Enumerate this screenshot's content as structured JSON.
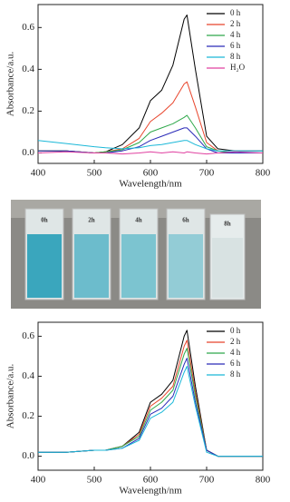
{
  "chart_data": [
    {
      "type": "line",
      "x_label": "Wavelength/nm",
      "y_label": "Absorbance/a.u.",
      "x": [
        400,
        450,
        500,
        520,
        550,
        580,
        600,
        620,
        640,
        660,
        665,
        680,
        700,
        720,
        750,
        800
      ],
      "xlim": [
        400,
        800
      ],
      "xticks": [
        400,
        500,
        600,
        700,
        800
      ],
      "ylim": [
        -0.05,
        0.71
      ],
      "yticks": [
        {
          "value": 0,
          "label": "0.0"
        },
        {
          "value": 0.2,
          "label": "0.2"
        },
        {
          "value": 0.4,
          "label": "0.4"
        },
        {
          "value": 0.6,
          "label": "0.6"
        }
      ],
      "legend": "upper right",
      "series": [
        {
          "name": "0 h",
          "color": "#000000",
          "values": [
            0.01,
            0.01,
            0.0,
            0.005,
            0.04,
            0.12,
            0.25,
            0.3,
            0.42,
            0.64,
            0.66,
            0.4,
            0.08,
            0.02,
            0.01,
            0.01
          ]
        },
        {
          "name": "2 h",
          "color": "#e8452c",
          "values": [
            0.01,
            0.01,
            0.0,
            0.005,
            0.02,
            0.07,
            0.15,
            0.19,
            0.24,
            0.33,
            0.34,
            0.22,
            0.05,
            0.01,
            0.0,
            0.0
          ]
        },
        {
          "name": "4 h",
          "color": "#2ea84a",
          "values": [
            0.01,
            0.01,
            0.0,
            0.005,
            0.015,
            0.05,
            0.1,
            0.12,
            0.14,
            0.17,
            0.18,
            0.12,
            0.03,
            0.01,
            0.0,
            0.0
          ]
        },
        {
          "name": "6 h",
          "color": "#2a2ab8",
          "values": [
            0.01,
            0.01,
            0.0,
            0.0,
            0.01,
            0.03,
            0.06,
            0.08,
            0.1,
            0.12,
            0.12,
            0.08,
            0.02,
            0.0,
            0.0,
            0.0
          ]
        },
        {
          "name": "8 h",
          "color": "#1bb8d8",
          "values": [
            0.06,
            0.045,
            0.03,
            0.025,
            0.02,
            0.025,
            0.035,
            0.04,
            0.05,
            0.06,
            0.06,
            0.04,
            0.02,
            0.01,
            0.01,
            0.01
          ]
        },
        {
          "name": "H₂O",
          "color": "#e040a0",
          "values": [
            0.0,
            0.005,
            0.0,
            0.0,
            -0.005,
            0.0,
            0.005,
            0.0,
            0.005,
            0.0,
            0.005,
            0.0,
            -0.005,
            0.0,
            0.005,
            0.0
          ]
        }
      ]
    },
    {
      "type": "line",
      "x_label": "Wavelength/nm",
      "y_label": "Absorbance/a.u.",
      "x": [
        400,
        450,
        500,
        520,
        550,
        580,
        600,
        620,
        640,
        660,
        665,
        680,
        700,
        720,
        750,
        800
      ],
      "xlim": [
        400,
        800
      ],
      "xticks": [
        400,
        500,
        600,
        700,
        800
      ],
      "ylim": [
        -0.07,
        0.67
      ],
      "yticks": [
        {
          "value": 0,
          "label": "0.0"
        },
        {
          "value": 0.2,
          "label": "0.2"
        },
        {
          "value": 0.4,
          "label": "0.4"
        },
        {
          "value": 0.6,
          "label": "0.6"
        }
      ],
      "legend": "upper right",
      "series": [
        {
          "name": "0 h",
          "color": "#000000",
          "values": [
            0.02,
            0.02,
            0.03,
            0.03,
            0.05,
            0.12,
            0.27,
            0.31,
            0.38,
            0.6,
            0.63,
            0.35,
            0.03,
            0.0,
            0.0,
            0.0
          ]
        },
        {
          "name": "2 h",
          "color": "#e8452c",
          "values": [
            0.02,
            0.02,
            0.03,
            0.03,
            0.05,
            0.11,
            0.25,
            0.29,
            0.35,
            0.55,
            0.58,
            0.32,
            0.03,
            0.0,
            0.0,
            0.0
          ]
        },
        {
          "name": "4 h",
          "color": "#2ea84a",
          "values": [
            0.02,
            0.02,
            0.03,
            0.03,
            0.05,
            0.1,
            0.23,
            0.27,
            0.33,
            0.51,
            0.54,
            0.3,
            0.03,
            0.0,
            0.0,
            0.0
          ]
        },
        {
          "name": "6 h",
          "color": "#2a2ab8",
          "values": [
            0.02,
            0.02,
            0.03,
            0.03,
            0.04,
            0.09,
            0.21,
            0.24,
            0.3,
            0.46,
            0.49,
            0.27,
            0.03,
            0.0,
            0.0,
            0.0
          ]
        },
        {
          "name": "8 h",
          "color": "#1bb8d8",
          "values": [
            0.02,
            0.02,
            0.03,
            0.03,
            0.04,
            0.08,
            0.19,
            0.22,
            0.27,
            0.42,
            0.45,
            0.25,
            0.02,
            0.0,
            0.0,
            0.0
          ]
        }
      ]
    }
  ],
  "photo": {
    "labels": [
      "0h",
      "2h",
      "4h",
      "6h",
      "8h"
    ]
  }
}
